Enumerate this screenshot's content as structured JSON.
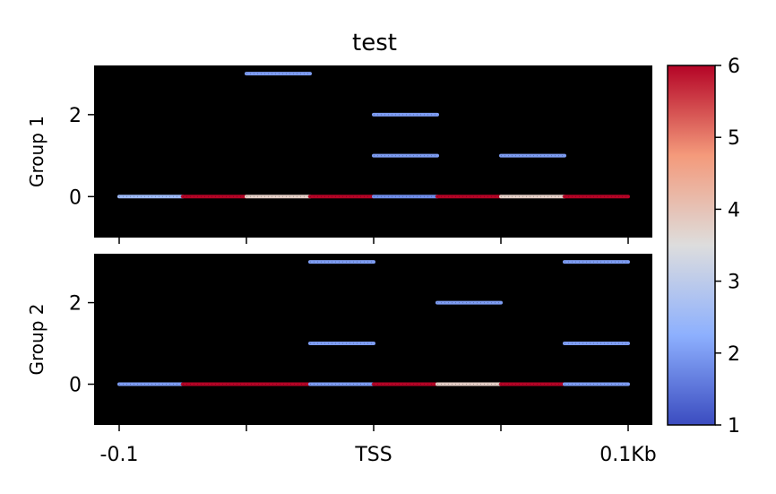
{
  "chart_data": {
    "type": "heatmap",
    "title": "test",
    "xtick_labels": [
      "-0.1",
      "TSS",
      "0.1Kb"
    ],
    "ylim": [
      -1,
      3.2
    ],
    "yticks": [
      0,
      2
    ],
    "colorbar": {
      "colormap": "coolwarm",
      "min": 1,
      "max": 6,
      "ticks": [
        1,
        2,
        3,
        4,
        5,
        6
      ]
    },
    "panels": [
      {
        "ylabel": "Group 1",
        "segments": [
          {
            "row": 0,
            "x0": 0,
            "x1": 1,
            "value": 2.5
          },
          {
            "row": 0,
            "x0": 1,
            "x1": 2,
            "value": 6
          },
          {
            "row": 0,
            "x0": 2,
            "x1": 3,
            "value": 3.8
          },
          {
            "row": 0,
            "x0": 3,
            "x1": 4,
            "value": 6
          },
          {
            "row": 0,
            "x0": 4,
            "x1": 5,
            "value": 1.8
          },
          {
            "row": 0,
            "x0": 5,
            "x1": 6,
            "value": 6
          },
          {
            "row": 0,
            "x0": 6,
            "x1": 7,
            "value": 3.8
          },
          {
            "row": 0,
            "x0": 7,
            "x1": 8,
            "value": 6
          },
          {
            "row": 1,
            "x0": 4,
            "x1": 5,
            "value": 2
          },
          {
            "row": 1,
            "x0": 6,
            "x1": 7,
            "value": 2
          },
          {
            "row": 2,
            "x0": 4,
            "x1": 5,
            "value": 2
          },
          {
            "row": 3,
            "x0": 2,
            "x1": 3,
            "value": 2
          }
        ]
      },
      {
        "ylabel": "Group 2",
        "segments": [
          {
            "row": 0,
            "x0": 0,
            "x1": 1,
            "value": 2
          },
          {
            "row": 0,
            "x0": 1,
            "x1": 3,
            "value": 6
          },
          {
            "row": 0,
            "x0": 3,
            "x1": 4,
            "value": 2
          },
          {
            "row": 0,
            "x0": 4,
            "x1": 5,
            "value": 6
          },
          {
            "row": 0,
            "x0": 5,
            "x1": 6,
            "value": 3.8
          },
          {
            "row": 0,
            "x0": 6,
            "x1": 7,
            "value": 6
          },
          {
            "row": 0,
            "x0": 7,
            "x1": 8,
            "value": 2
          },
          {
            "row": 1,
            "x0": 3,
            "x1": 4,
            "value": 2
          },
          {
            "row": 1,
            "x0": 7,
            "x1": 8,
            "value": 2
          },
          {
            "row": 2,
            "x0": 5,
            "x1": 6,
            "value": 2
          },
          {
            "row": 3,
            "x0": 3,
            "x1": 4,
            "value": 2
          },
          {
            "row": 3,
            "x0": 7,
            "x1": 8,
            "value": 2
          }
        ]
      }
    ]
  }
}
